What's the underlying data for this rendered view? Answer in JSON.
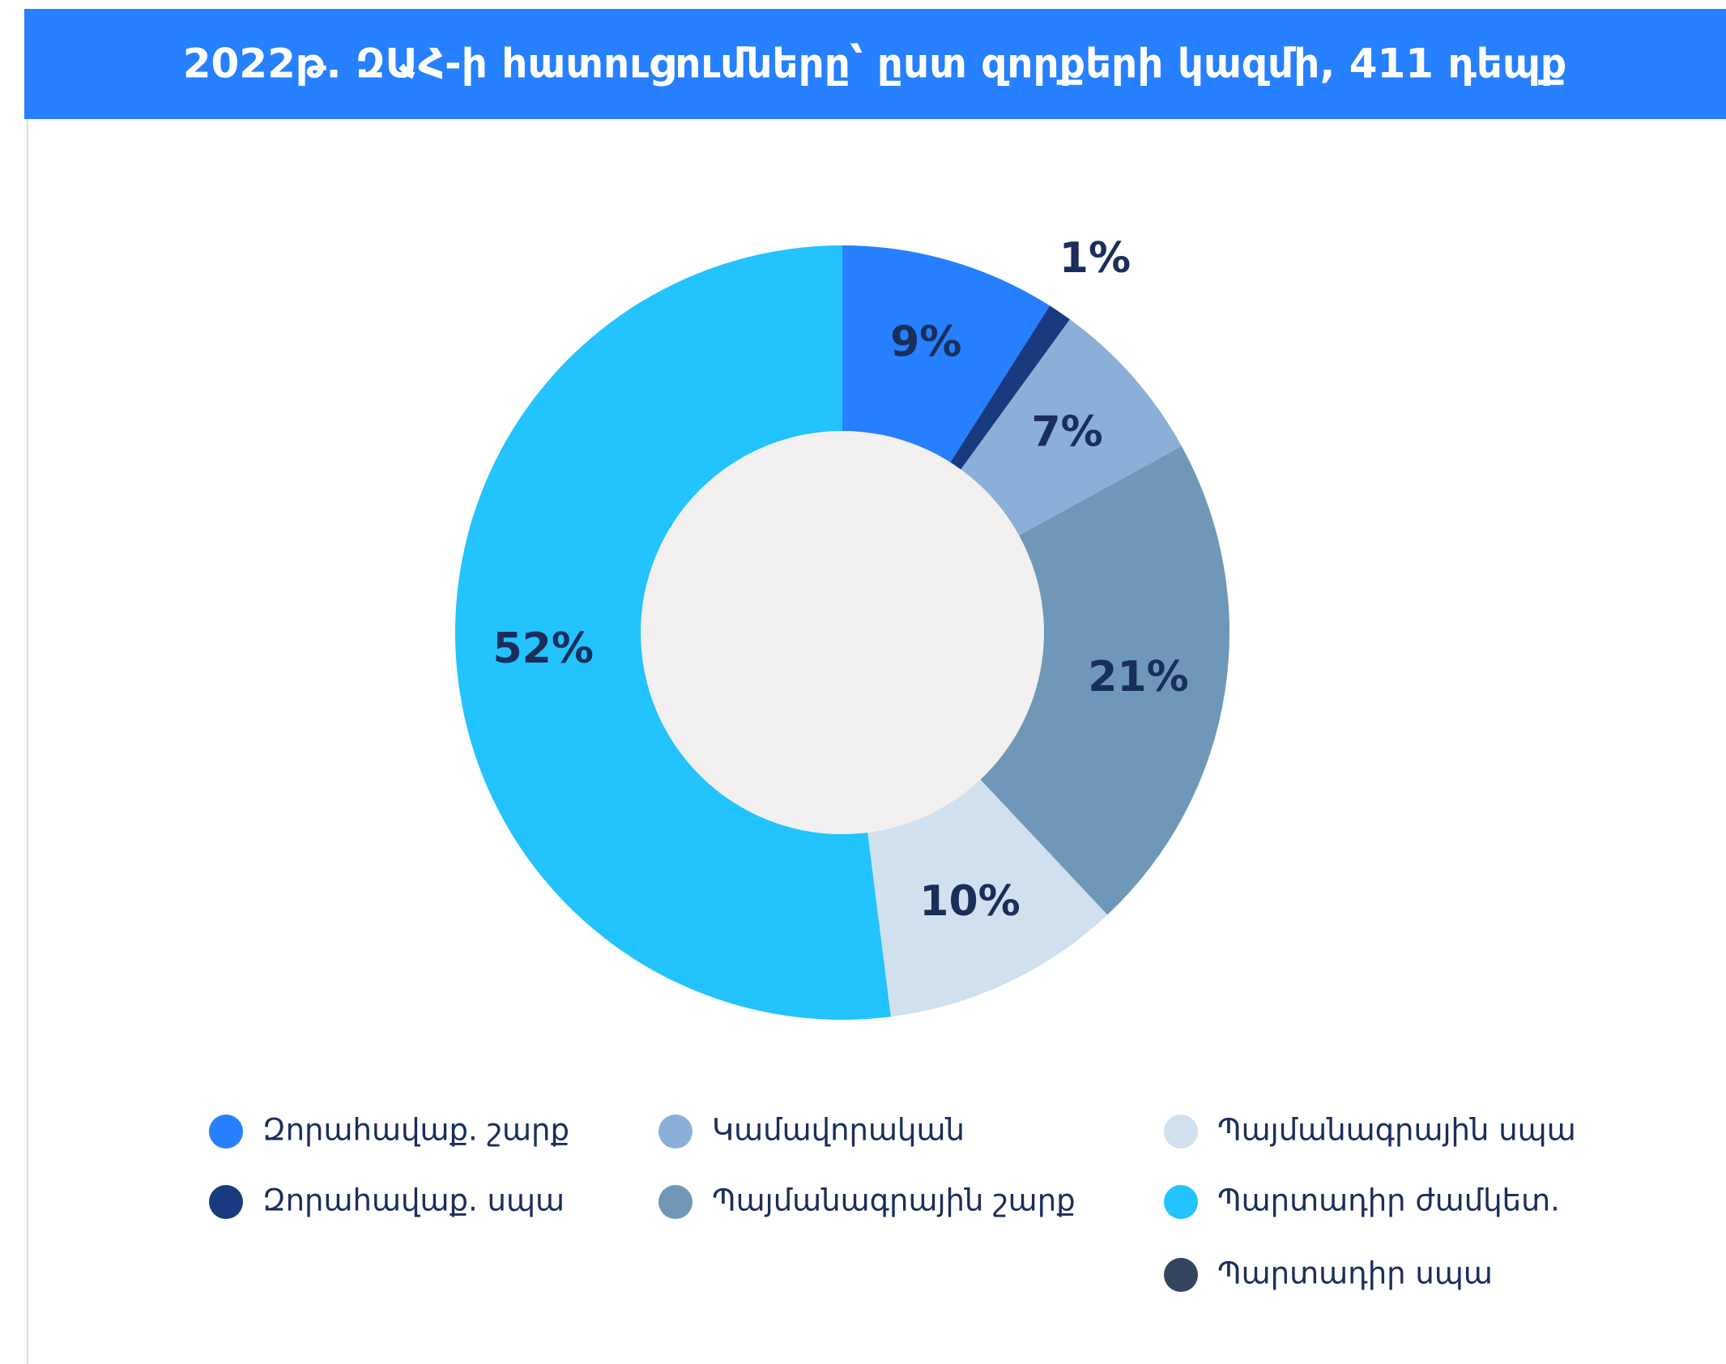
{
  "chart_data": {
    "type": "donut",
    "title": "2022թ. ԶԱՀ-ի հատուցումները՝ ըստ զորքերի կազմի, 411 դեպք",
    "categories": [
      "Զորահավաք. շարք",
      "Զորահավաք. սպա",
      "Կամավորական",
      "Պայմանագրային շարք",
      "Պայմանագրային սպա",
      "Պարտադիր ժամկետ.",
      "Պարտադիր սպա"
    ],
    "values": [
      9,
      1,
      7,
      21,
      10,
      52,
      0
    ],
    "value_labels": [
      "9%",
      "1%",
      "7%",
      "21%",
      "10%",
      "52%",
      null
    ],
    "colors": [
      "#2680ff",
      "#1a3a80",
      "#8ab0d8",
      "#6f98b8",
      "#d0e0ee",
      "#22c3ff",
      "#33445e"
    ]
  }
}
